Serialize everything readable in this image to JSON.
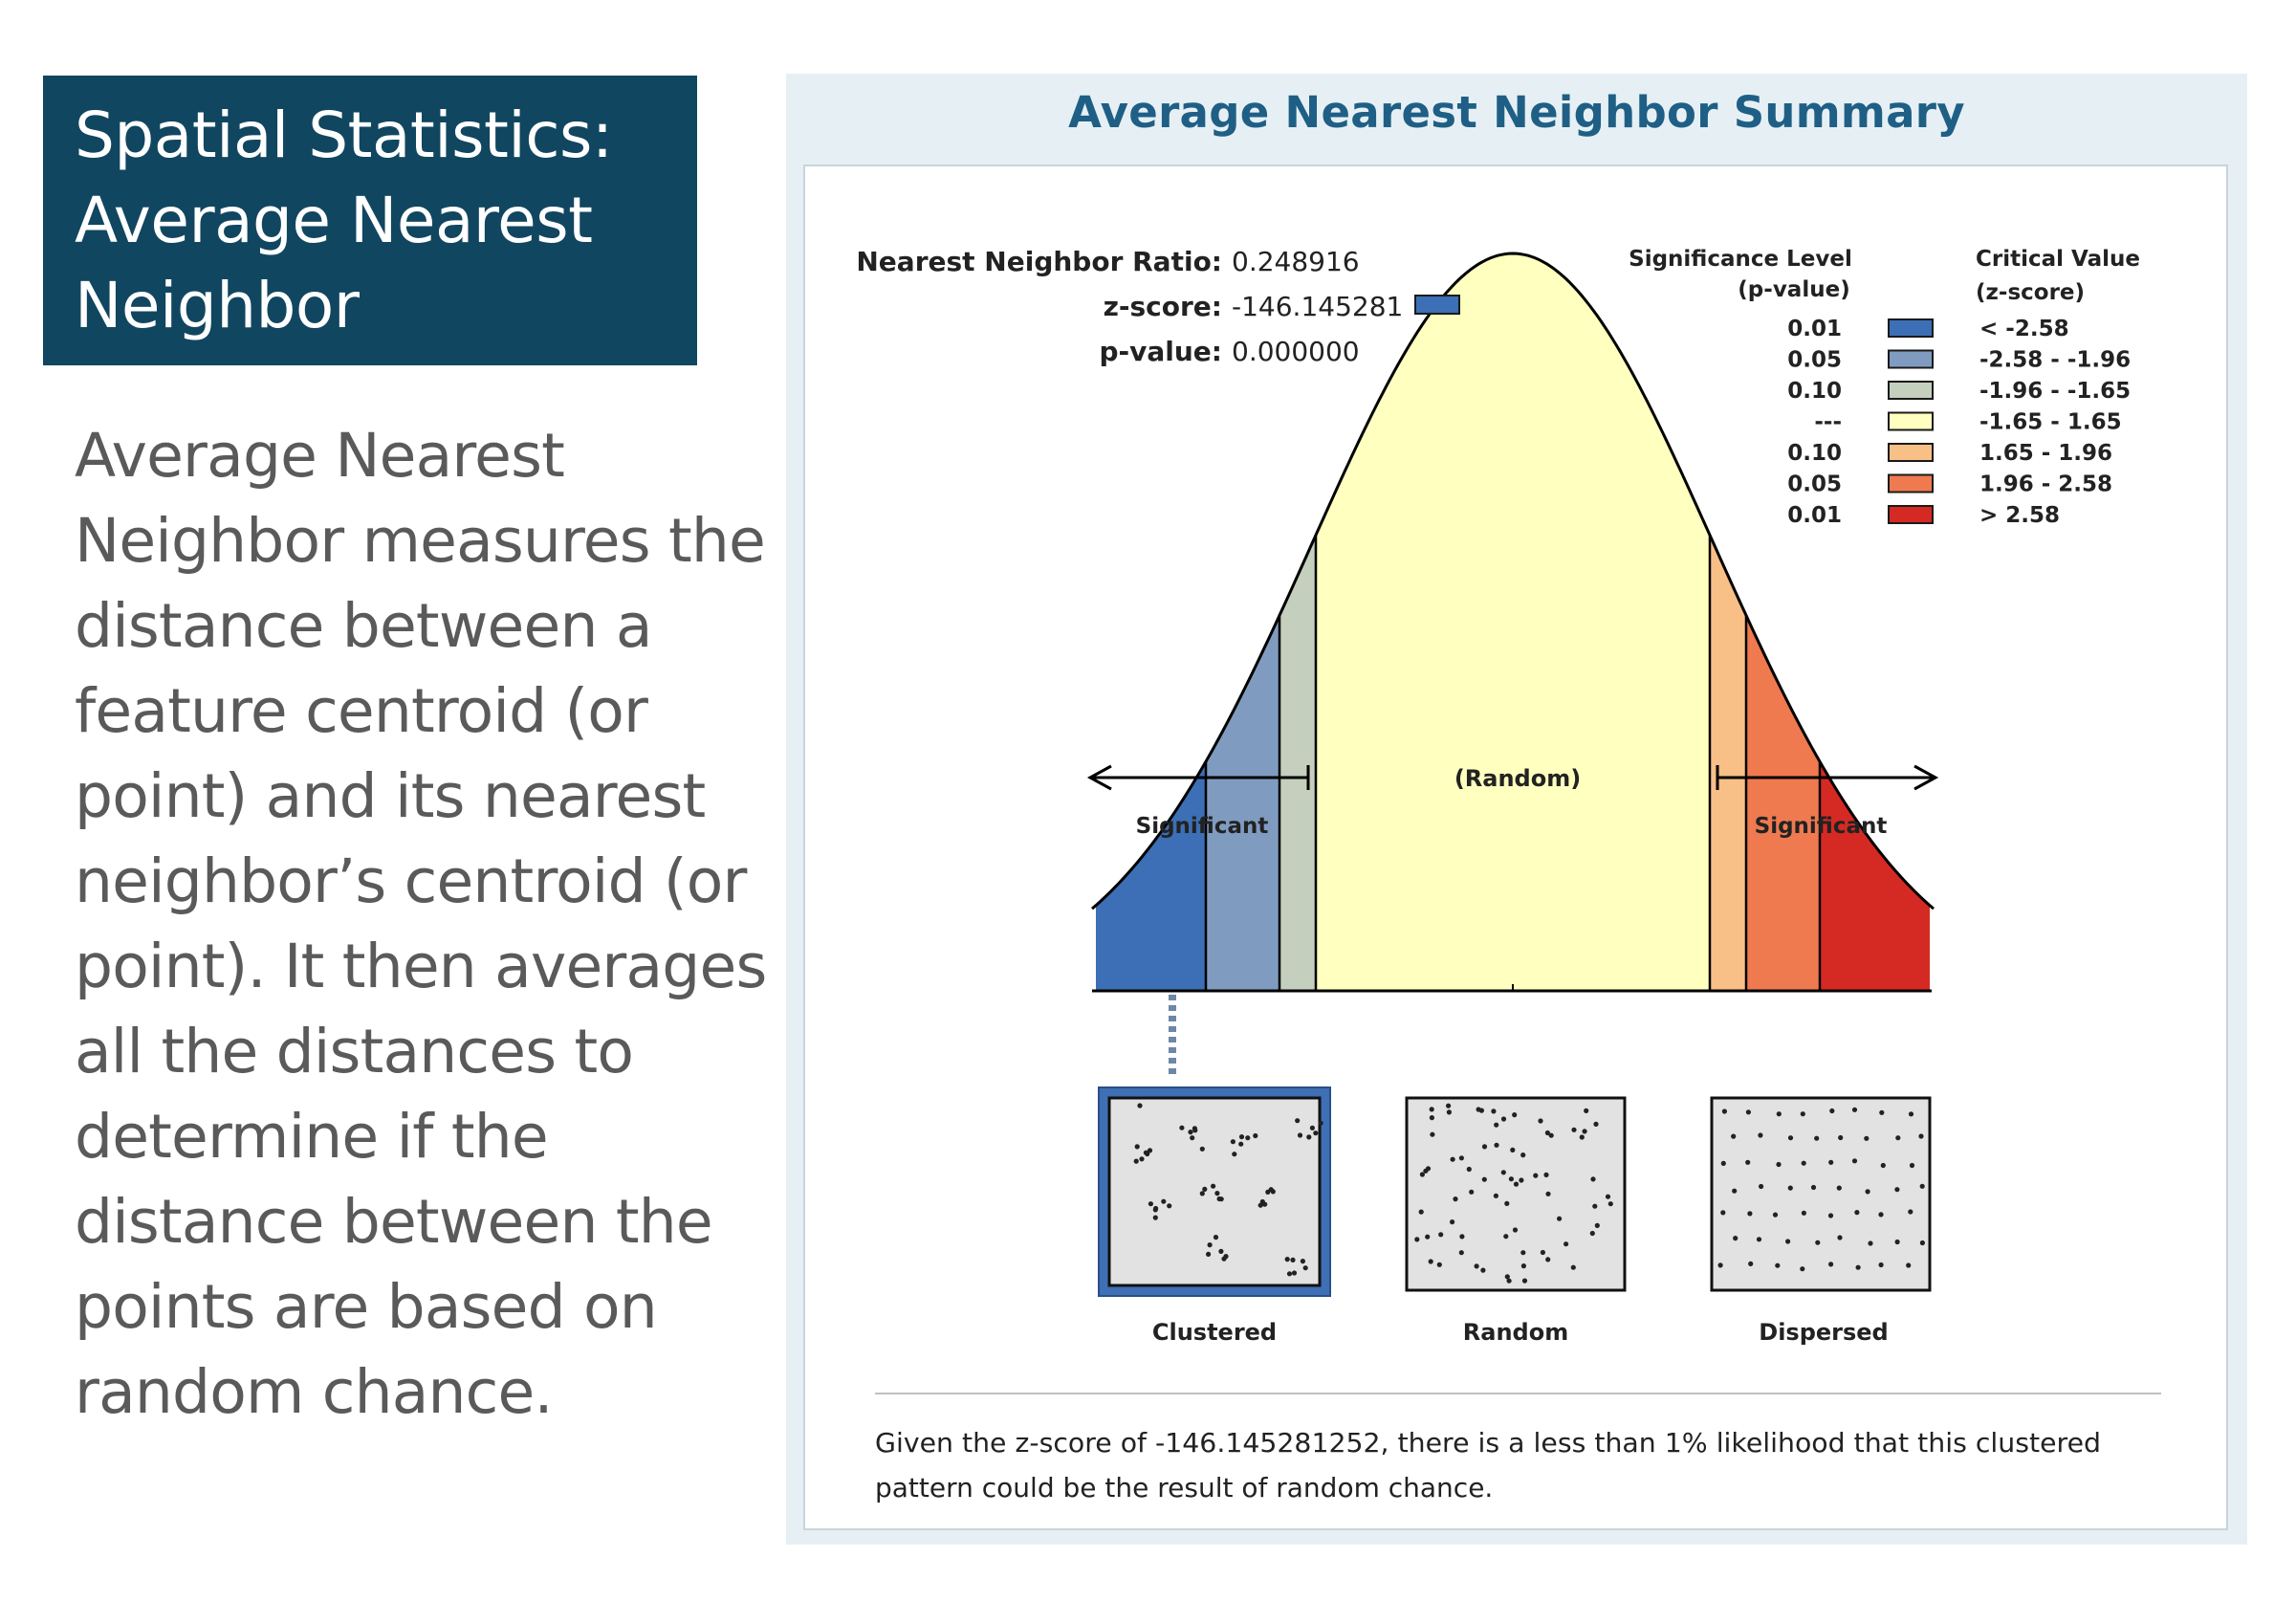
{
  "slide": {
    "title_lines": [
      "Spatial Statistics:",
      "Average Nearest",
      "Neighbor"
    ],
    "description_lines": [
      "Average Nearest",
      "Neighbor measures the",
      "distance between a",
      "feature centroid (or",
      "point) and its nearest",
      "neighbor’s centroid (or",
      "point). It then averages",
      "all the distances to",
      "determine if the",
      "distance between the",
      "points are based on",
      "random chance."
    ]
  },
  "report": {
    "title": "Average Nearest Neighbor Summary",
    "stats": {
      "ratio_label": "Nearest Neighbor Ratio:",
      "ratio_value": "0.248916",
      "z_label": "z-score:",
      "z_value": "-146.145281",
      "p_label": "p-value:",
      "p_value": "0.000000"
    },
    "legend": {
      "sig_header_1": "Significance Level",
      "sig_header_2": "(p-value)",
      "crit_header_1": "Critical Value",
      "crit_header_2": "(z-score)",
      "rows": [
        {
          "p": "0.01",
          "z": "< -2.58",
          "color": "#3c6fb5"
        },
        {
          "p": "0.05",
          "z": "-2.58 - -1.96",
          "color": "#7f9cc0"
        },
        {
          "p": "0.10",
          "z": "-1.96 - -1.65",
          "color": "#c4cfbd"
        },
        {
          "p": "---",
          "z": "-1.65 - 1.65",
          "color": "#ffffbf"
        },
        {
          "p": "0.10",
          "z": "1.65 - 1.96",
          "color": "#f8bf87"
        },
        {
          "p": "0.05",
          "z": "1.96 - 2.58",
          "color": "#ef7a50"
        },
        {
          "p": "0.01",
          "z": "> 2.58",
          "color": "#d52a23"
        }
      ]
    },
    "curve": {
      "center_label": "(Random)",
      "left_label": "Significant",
      "right_label": "Significant"
    },
    "patterns": [
      "Clustered",
      "Random",
      "Dispersed"
    ],
    "selected_pattern": "Clustered",
    "conclusion_line1": "Given the z-score of -146.145281252, there is a less than 1% likelihood that this clustered",
    "conclusion_line2": "pattern could be the result of random chance."
  }
}
